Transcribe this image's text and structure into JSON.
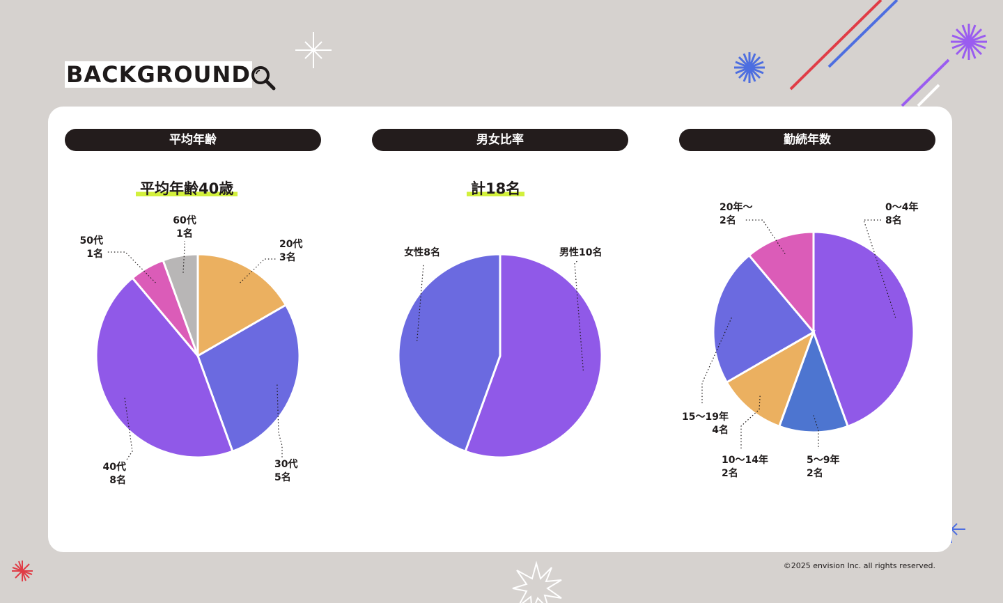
{
  "header": {
    "title": "BACKGROUND",
    "icon": "magnifier-icon"
  },
  "panels": [
    {
      "label": "平均年齢",
      "headline": "平均年齢40歳"
    },
    {
      "label": "男女比率",
      "headline": "計18名"
    },
    {
      "label": "勤続年数",
      "headline": ""
    }
  ],
  "footer": {
    "copyright": "©2025 envision Inc. all rights reserved."
  },
  "chart_data": [
    {
      "type": "pie",
      "title": "平均年齢",
      "categories": [
        "20代",
        "30代",
        "40代",
        "50代",
        "60代"
      ],
      "values": [
        3,
        5,
        8,
        1,
        1
      ],
      "value_labels": [
        "3名",
        "5名",
        "8名",
        "1名",
        "1名"
      ],
      "colors": [
        "#ebb060",
        "#6b6ae0",
        "#9059e8",
        "#db5cb8",
        "#b8b6b6"
      ]
    },
    {
      "type": "pie",
      "title": "男女比率",
      "categories": [
        "男性",
        "女性"
      ],
      "values": [
        10,
        8
      ],
      "labels": [
        "男性10名",
        "女性8名"
      ],
      "colors": [
        "#9059e8",
        "#6b6ae0"
      ]
    },
    {
      "type": "pie",
      "title": "勤続年数",
      "categories": [
        "0〜4年",
        "5〜9年",
        "10〜14年",
        "15〜19年",
        "20年〜"
      ],
      "values": [
        8,
        2,
        2,
        4,
        2
      ],
      "value_labels": [
        "8名",
        "2名",
        "2名",
        "4名",
        "2名"
      ],
      "colors": [
        "#9059e8",
        "#4d75d0",
        "#ebb060",
        "#6b6ae0",
        "#db5cb8"
      ]
    }
  ],
  "decor_colors": {
    "lime": "#c8f032",
    "blue": "#4d6ee0",
    "purple": "#9a5cf0",
    "red": "#e03c46",
    "white": "#ffffff"
  }
}
